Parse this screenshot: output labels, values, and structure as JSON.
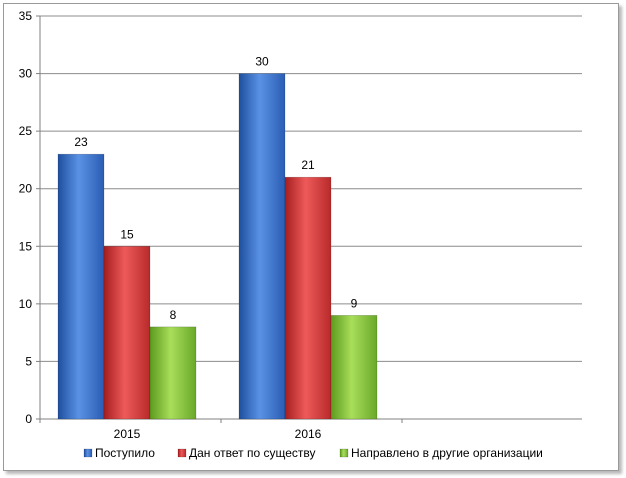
{
  "chart_data": {
    "type": "bar",
    "categories": [
      "2015",
      "2016"
    ],
    "series": [
      {
        "name": "Поступило",
        "values": [
          23,
          30
        ],
        "color": "#3b72c8"
      },
      {
        "name": "Дан ответ по существу",
        "values": [
          15,
          21
        ],
        "color": "#d8393a"
      },
      {
        "name": "Направлено в другие организации",
        "values": [
          8,
          9
        ],
        "color": "#8cc63a"
      }
    ],
    "ylim": [
      0,
      35
    ],
    "yticks": [
      "0",
      "5",
      "10",
      "15",
      "20",
      "25",
      "30",
      "35"
    ],
    "grid": true,
    "legend": "bottom",
    "data_labels": true
  }
}
